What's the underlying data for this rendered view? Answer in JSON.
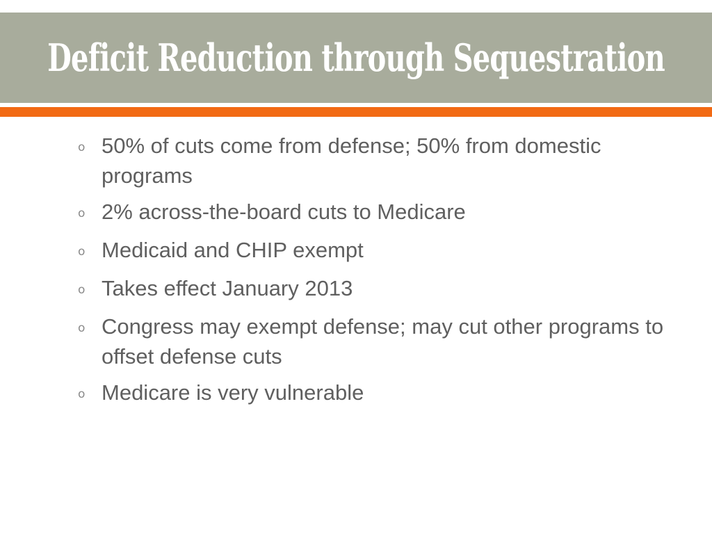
{
  "slide": {
    "title": "Deficit Reduction through Sequestration",
    "bullet_marker": "o",
    "bullets": [
      "50% of cuts come from defense; 50% from domestic programs",
      "2% across-the-board cuts to Medicare",
      "Medicaid and CHIP exempt",
      "Takes effect January 2013",
      "Congress may exempt defense; may cut other programs to offset defense cuts",
      "Medicare is very vulnerable"
    ]
  },
  "colors": {
    "title_band": "#a8ac9c",
    "accent_rule": "#f26a14",
    "title_text": "#ffffff",
    "body_text": "#5f5f5f"
  }
}
